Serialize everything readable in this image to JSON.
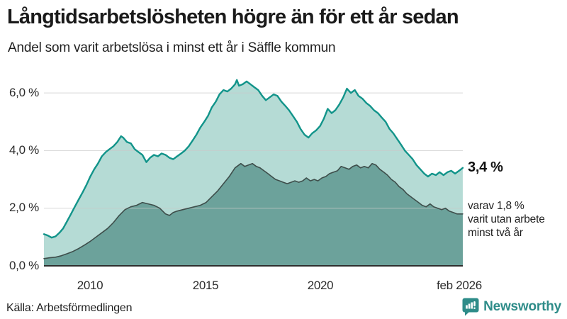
{
  "header": {
    "title": "Långtidsarbetslösheten högre än för ett år sedan",
    "subtitle": "Andel som varit arbetslösa i minst ett år i Säffle kommun"
  },
  "footer": {
    "source": "Källa: Arbetsförmedlingen",
    "brand_name": "Newsworthy"
  },
  "colors": {
    "title_text": "#1a1a1a",
    "body_text": "#1f1f1f",
    "axis_text": "#2b2b2b",
    "gridline": "#c9c9c9",
    "axis_line": "#2e2e2e",
    "total_line": "#12948a",
    "total_fill": "#b5dbd5",
    "subset_line": "#3e4e4b",
    "subset_fill": "#6ca29b",
    "brand_teal": "#2e8c89"
  },
  "chart_data": {
    "type": "area",
    "title": "Långtidsarbetslösheten högre än för ett år sedan",
    "subtitle": "Andel som varit arbetslösa i minst ett år i Säffle kommun",
    "unit": "%",
    "x_axis": {
      "range": [
        2008.0,
        2026.083
      ],
      "ticks": [
        "2010",
        "2015",
        "2020",
        "feb 2026"
      ],
      "tick_positions": [
        2010,
        2015,
        2020,
        2026.05
      ]
    },
    "y_axis": {
      "range": [
        0,
        6.6
      ],
      "ticks": [
        "0,0 %",
        "2,0 %",
        "4,0 %",
        "6,0 %"
      ],
      "tick_values": [
        0,
        2,
        4,
        6
      ],
      "grid": true
    },
    "annotations": {
      "total_end_label": "3,4 %",
      "subset_end_lines": [
        "varav 1,8 %",
        "varit utan arbete",
        "minst två år"
      ]
    },
    "series": [
      {
        "name": "Andel arbetslösa minst ett år",
        "end_value": 3.4,
        "color": "#12948a",
        "fill": "#b5dbd5",
        "line_width": 2.4,
        "points": [
          [
            2008.0,
            1.1
          ],
          [
            2008.17,
            1.05
          ],
          [
            2008.33,
            0.98
          ],
          [
            2008.5,
            1.02
          ],
          [
            2008.67,
            1.15
          ],
          [
            2008.83,
            1.3
          ],
          [
            2009.0,
            1.55
          ],
          [
            2009.17,
            1.8
          ],
          [
            2009.33,
            2.05
          ],
          [
            2009.5,
            2.3
          ],
          [
            2009.67,
            2.55
          ],
          [
            2009.83,
            2.8
          ],
          [
            2010.0,
            3.1
          ],
          [
            2010.17,
            3.35
          ],
          [
            2010.33,
            3.55
          ],
          [
            2010.5,
            3.8
          ],
          [
            2010.67,
            3.95
          ],
          [
            2010.83,
            4.05
          ],
          [
            2011.0,
            4.15
          ],
          [
            2011.17,
            4.3
          ],
          [
            2011.33,
            4.5
          ],
          [
            2011.42,
            4.45
          ],
          [
            2011.58,
            4.3
          ],
          [
            2011.75,
            4.25
          ],
          [
            2011.92,
            4.05
          ],
          [
            2012.08,
            3.95
          ],
          [
            2012.25,
            3.85
          ],
          [
            2012.42,
            3.6
          ],
          [
            2012.58,
            3.75
          ],
          [
            2012.75,
            3.85
          ],
          [
            2012.92,
            3.8
          ],
          [
            2013.08,
            3.9
          ],
          [
            2013.25,
            3.85
          ],
          [
            2013.42,
            3.75
          ],
          [
            2013.58,
            3.7
          ],
          [
            2013.75,
            3.8
          ],
          [
            2013.92,
            3.9
          ],
          [
            2014.08,
            4.0
          ],
          [
            2014.25,
            4.15
          ],
          [
            2014.42,
            4.35
          ],
          [
            2014.58,
            4.55
          ],
          [
            2014.75,
            4.8
          ],
          [
            2014.92,
            5.0
          ],
          [
            2015.08,
            5.2
          ],
          [
            2015.25,
            5.5
          ],
          [
            2015.42,
            5.7
          ],
          [
            2015.58,
            5.95
          ],
          [
            2015.75,
            6.1
          ],
          [
            2015.92,
            6.05
          ],
          [
            2016.08,
            6.15
          ],
          [
            2016.25,
            6.3
          ],
          [
            2016.33,
            6.45
          ],
          [
            2016.42,
            6.25
          ],
          [
            2016.58,
            6.3
          ],
          [
            2016.75,
            6.4
          ],
          [
            2016.92,
            6.3
          ],
          [
            2017.08,
            6.2
          ],
          [
            2017.25,
            6.1
          ],
          [
            2017.42,
            5.9
          ],
          [
            2017.58,
            5.75
          ],
          [
            2017.75,
            5.85
          ],
          [
            2017.92,
            5.95
          ],
          [
            2018.08,
            5.9
          ],
          [
            2018.25,
            5.7
          ],
          [
            2018.42,
            5.55
          ],
          [
            2018.58,
            5.4
          ],
          [
            2018.75,
            5.2
          ],
          [
            2018.92,
            5.0
          ],
          [
            2019.08,
            4.75
          ],
          [
            2019.25,
            4.55
          ],
          [
            2019.42,
            4.45
          ],
          [
            2019.58,
            4.6
          ],
          [
            2019.75,
            4.7
          ],
          [
            2019.92,
            4.85
          ],
          [
            2020.08,
            5.1
          ],
          [
            2020.25,
            5.45
          ],
          [
            2020.42,
            5.3
          ],
          [
            2020.58,
            5.4
          ],
          [
            2020.75,
            5.6
          ],
          [
            2020.92,
            5.85
          ],
          [
            2021.08,
            6.15
          ],
          [
            2021.25,
            6.0
          ],
          [
            2021.42,
            6.1
          ],
          [
            2021.58,
            5.9
          ],
          [
            2021.75,
            5.8
          ],
          [
            2021.92,
            5.65
          ],
          [
            2022.08,
            5.55
          ],
          [
            2022.25,
            5.4
          ],
          [
            2022.42,
            5.3
          ],
          [
            2022.58,
            5.15
          ],
          [
            2022.75,
            5.0
          ],
          [
            2022.92,
            4.75
          ],
          [
            2023.08,
            4.6
          ],
          [
            2023.25,
            4.4
          ],
          [
            2023.42,
            4.2
          ],
          [
            2023.58,
            4.0
          ],
          [
            2023.75,
            3.85
          ],
          [
            2023.92,
            3.7
          ],
          [
            2024.08,
            3.5
          ],
          [
            2024.25,
            3.35
          ],
          [
            2024.42,
            3.2
          ],
          [
            2024.58,
            3.1
          ],
          [
            2024.75,
            3.2
          ],
          [
            2024.92,
            3.15
          ],
          [
            2025.08,
            3.25
          ],
          [
            2025.25,
            3.15
          ],
          [
            2025.42,
            3.25
          ],
          [
            2025.58,
            3.3
          ],
          [
            2025.75,
            3.2
          ],
          [
            2025.92,
            3.3
          ],
          [
            2026.08,
            3.4
          ]
        ]
      },
      {
        "name": "varav utan arbete minst två år",
        "end_value": 1.8,
        "color": "#3e4e4b",
        "fill": "#6ca29b",
        "line_width": 1.6,
        "points": [
          [
            2008.0,
            0.25
          ],
          [
            2008.25,
            0.28
          ],
          [
            2008.5,
            0.3
          ],
          [
            2008.75,
            0.35
          ],
          [
            2009.0,
            0.42
          ],
          [
            2009.25,
            0.5
          ],
          [
            2009.5,
            0.6
          ],
          [
            2009.75,
            0.72
          ],
          [
            2010.0,
            0.85
          ],
          [
            2010.25,
            1.0
          ],
          [
            2010.5,
            1.15
          ],
          [
            2010.75,
            1.3
          ],
          [
            2011.0,
            1.5
          ],
          [
            2011.25,
            1.75
          ],
          [
            2011.5,
            1.95
          ],
          [
            2011.75,
            2.05
          ],
          [
            2012.0,
            2.1
          ],
          [
            2012.25,
            2.2
          ],
          [
            2012.5,
            2.15
          ],
          [
            2012.75,
            2.1
          ],
          [
            2013.0,
            2.0
          ],
          [
            2013.25,
            1.8
          ],
          [
            2013.42,
            1.75
          ],
          [
            2013.58,
            1.85
          ],
          [
            2013.75,
            1.9
          ],
          [
            2014.0,
            1.95
          ],
          [
            2014.25,
            2.0
          ],
          [
            2014.5,
            2.05
          ],
          [
            2014.75,
            2.1
          ],
          [
            2015.0,
            2.2
          ],
          [
            2015.25,
            2.4
          ],
          [
            2015.5,
            2.6
          ],
          [
            2015.75,
            2.85
          ],
          [
            2016.0,
            3.1
          ],
          [
            2016.25,
            3.4
          ],
          [
            2016.5,
            3.55
          ],
          [
            2016.67,
            3.45
          ],
          [
            2016.83,
            3.5
          ],
          [
            2017.0,
            3.55
          ],
          [
            2017.17,
            3.45
          ],
          [
            2017.33,
            3.4
          ],
          [
            2017.5,
            3.3
          ],
          [
            2017.67,
            3.2
          ],
          [
            2017.83,
            3.1
          ],
          [
            2018.0,
            3.0
          ],
          [
            2018.17,
            2.95
          ],
          [
            2018.33,
            2.9
          ],
          [
            2018.5,
            2.85
          ],
          [
            2018.67,
            2.9
          ],
          [
            2018.83,
            2.95
          ],
          [
            2019.0,
            2.9
          ],
          [
            2019.17,
            2.95
          ],
          [
            2019.33,
            3.05
          ],
          [
            2019.5,
            2.95
          ],
          [
            2019.67,
            3.0
          ],
          [
            2019.83,
            2.95
          ],
          [
            2020.0,
            3.05
          ],
          [
            2020.17,
            3.1
          ],
          [
            2020.33,
            3.2
          ],
          [
            2020.5,
            3.25
          ],
          [
            2020.67,
            3.3
          ],
          [
            2020.83,
            3.45
          ],
          [
            2021.0,
            3.4
          ],
          [
            2021.17,
            3.35
          ],
          [
            2021.33,
            3.45
          ],
          [
            2021.5,
            3.5
          ],
          [
            2021.67,
            3.4
          ],
          [
            2021.83,
            3.45
          ],
          [
            2022.0,
            3.4
          ],
          [
            2022.17,
            3.55
          ],
          [
            2022.33,
            3.5
          ],
          [
            2022.5,
            3.35
          ],
          [
            2022.67,
            3.25
          ],
          [
            2022.83,
            3.15
          ],
          [
            2023.0,
            3.0
          ],
          [
            2023.17,
            2.9
          ],
          [
            2023.33,
            2.75
          ],
          [
            2023.5,
            2.65
          ],
          [
            2023.67,
            2.5
          ],
          [
            2023.83,
            2.4
          ],
          [
            2024.0,
            2.3
          ],
          [
            2024.17,
            2.2
          ],
          [
            2024.33,
            2.1
          ],
          [
            2024.5,
            2.05
          ],
          [
            2024.67,
            2.15
          ],
          [
            2024.83,
            2.05
          ],
          [
            2025.0,
            2.0
          ],
          [
            2025.17,
            1.95
          ],
          [
            2025.33,
            2.0
          ],
          [
            2025.5,
            1.9
          ],
          [
            2025.67,
            1.85
          ],
          [
            2025.83,
            1.8
          ],
          [
            2026.08,
            1.8
          ]
        ]
      }
    ],
    "legend_position": "none"
  }
}
